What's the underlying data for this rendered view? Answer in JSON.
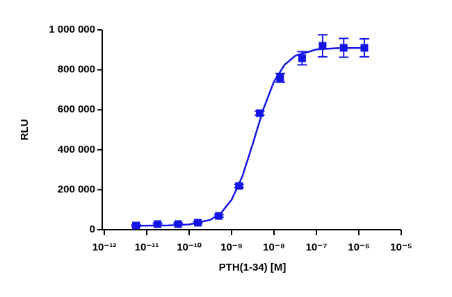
{
  "chart_data": {
    "type": "scatter",
    "x_label": "PTH(1-34) [M]",
    "y_label": "RLU",
    "log_x": true,
    "marker": "square",
    "color": "#1414e6",
    "xlim": [
      1e-12,
      1e-05
    ],
    "xticks": [
      {
        "value": 1e-12,
        "label": "10⁻¹²"
      },
      {
        "value": 1e-11,
        "label": "10⁻¹¹"
      },
      {
        "value": 1e-10,
        "label": "10⁻¹⁰"
      },
      {
        "value": 1e-09,
        "label": "10⁻⁹"
      },
      {
        "value": 1e-08,
        "label": "10⁻⁸"
      },
      {
        "value": 1e-07,
        "label": "10⁻⁷"
      },
      {
        "value": 1e-06,
        "label": "10⁻⁶"
      },
      {
        "value": 1e-05,
        "label": "10⁻⁵"
      }
    ],
    "ylim": [
      0,
      1000000
    ],
    "yticks": [
      0,
      {
        "value": 200000,
        "label": "200 000"
      },
      {
        "value": 400000,
        "label": "400 000"
      },
      {
        "value": 600000,
        "label": "600 000"
      },
      {
        "value": 800000,
        "label": "800 000"
      },
      {
        "value": 1000000,
        "label": "1 000 000"
      }
    ],
    "x": [
      5.6e-12,
      1.8e-11,
      5.5e-11,
      1.6e-10,
      5e-10,
      1.5e-09,
      4.6e-09,
      1.4e-08,
      4.6e-08,
      1.4e-07,
      4.4e-07,
      1.35e-06
    ],
    "values": [
      21000,
      28000,
      28000,
      35000,
      69000,
      219000,
      583000,
      760000,
      858000,
      920000,
      910000,
      910000
    ],
    "errors": [
      5000,
      5000,
      5000,
      5000,
      6000,
      8000,
      10000,
      22000,
      33000,
      55000,
      47000,
      45000
    ],
    "fit": {
      "x": [
        5.62e-12,
        3.16e-11,
        1e-10,
        3.16e-10,
        5.62e-10,
        1e-09,
        1.78e-09,
        3.16e-09,
        5.62e-09,
        1e-08,
        1.78e-08,
        3.16e-08,
        1e-07,
        3.16e-07,
        1.35e-06
      ],
      "values": [
        20100,
        21200,
        26000,
        49200,
        82700,
        149200,
        265200,
        429200,
        603600,
        741200,
        825400,
        870200,
        901800,
        908300,
        909800
      ]
    }
  }
}
